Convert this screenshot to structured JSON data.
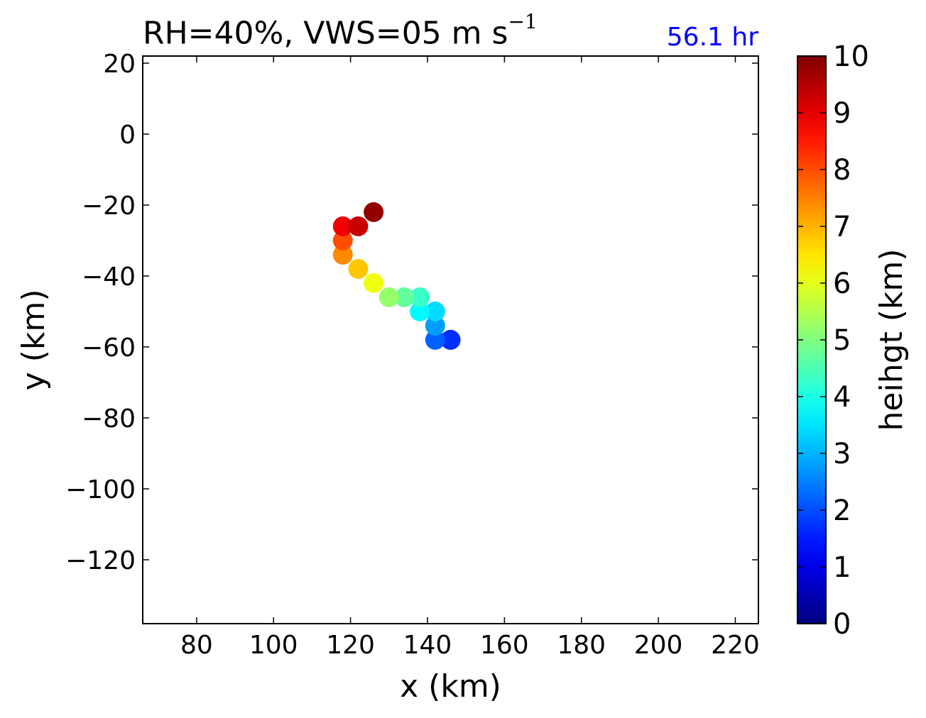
{
  "title": {
    "main_prefix": "RH=40%, VWS=05 m s",
    "main_exponent": "−1",
    "time_label": "56.1 hr",
    "time_label_color": "#0000ff"
  },
  "chart_data": {
    "type": "scatter",
    "xlabel": "x (km)",
    "ylabel": "y (km)",
    "xlim": [
      66,
      226
    ],
    "ylim": [
      -138,
      22
    ],
    "xticks": [
      80,
      100,
      120,
      140,
      160,
      180,
      200,
      220
    ],
    "yticks": [
      20,
      0,
      -20,
      -40,
      -60,
      -80,
      -100,
      -120
    ],
    "grid": false,
    "colormap": "jet",
    "colorbar": {
      "label": "heihgt (km)",
      "range": [
        0,
        10
      ],
      "ticks": [
        0,
        1,
        2,
        3,
        4,
        5,
        6,
        7,
        8,
        9,
        10
      ]
    },
    "points": [
      {
        "x": 146,
        "y": -58,
        "height": 1.5
      },
      {
        "x": 146,
        "y": -58,
        "height": 1.7
      },
      {
        "x": 142,
        "y": -58,
        "height": 2.2
      },
      {
        "x": 142,
        "y": -54,
        "height": 2.8
      },
      {
        "x": 142,
        "y": -50,
        "height": 3.4
      },
      {
        "x": 138,
        "y": -50,
        "height": 3.7
      },
      {
        "x": 138,
        "y": -46,
        "height": 4.3
      },
      {
        "x": 134,
        "y": -46,
        "height": 4.7
      },
      {
        "x": 130,
        "y": -46,
        "height": 5.2
      },
      {
        "x": 126,
        "y": -42,
        "height": 6.1
      },
      {
        "x": 122,
        "y": -38,
        "height": 6.8
      },
      {
        "x": 118,
        "y": -34,
        "height": 7.4
      },
      {
        "x": 118,
        "y": -30,
        "height": 8.0
      },
      {
        "x": 118,
        "y": -26,
        "height": 8.9
      },
      {
        "x": 122,
        "y": -26,
        "height": 9.3
      },
      {
        "x": 126,
        "y": -22,
        "height": 9.8
      }
    ]
  }
}
